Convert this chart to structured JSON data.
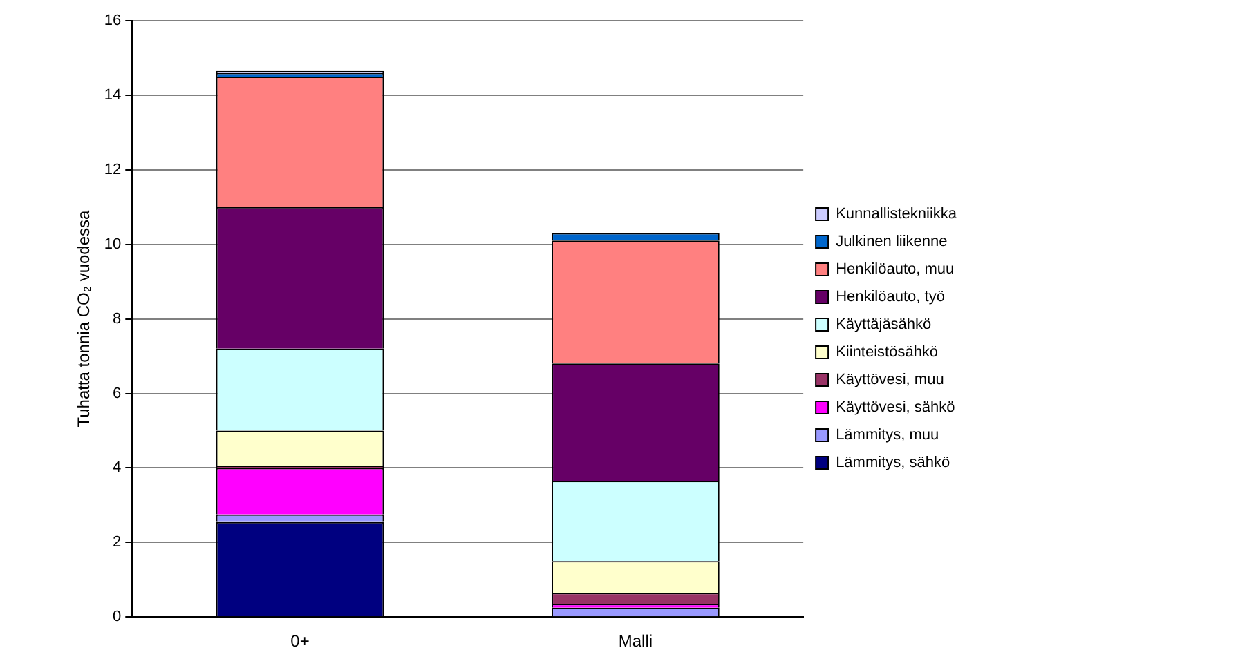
{
  "chart_data": {
    "type": "bar",
    "stacked": true,
    "ylabel": "Tuhatta tonnia CO₂ vuodessa",
    "categories": [
      "0+",
      "Malli"
    ],
    "ylim": [
      0,
      16
    ],
    "yticks": [
      0,
      2,
      4,
      6,
      8,
      10,
      12,
      14,
      16
    ],
    "grid": "y",
    "legend": "right",
    "series": [
      {
        "name": "Lämmitys, sähkö",
        "color": "#000080",
        "values": [
          2.55,
          0
        ]
      },
      {
        "name": "Lämmitys, muu",
        "color": "#9999ff",
        "values": [
          0.2,
          0.25
        ]
      },
      {
        "name": "Käyttövesi, sähkö",
        "color": "#ff00ff",
        "values": [
          1.25,
          0.1
        ]
      },
      {
        "name": "Käyttövesi, muu",
        "color": "#993366",
        "values": [
          0.05,
          0.3
        ]
      },
      {
        "name": "Kiinteistösähkö",
        "color": "#ffffcc",
        "values": [
          0.95,
          0.85
        ]
      },
      {
        "name": "Käyttäjäsähkö",
        "color": "#ccffff",
        "values": [
          2.2,
          2.15
        ]
      },
      {
        "name": "Henkilöauto, työ",
        "color": "#660066",
        "values": [
          3.8,
          3.15
        ]
      },
      {
        "name": "Henkilöauto, muu",
        "color": "#ff8080",
        "values": [
          3.5,
          3.3
        ]
      },
      {
        "name": "Julkinen liikenne",
        "color": "#0066cc",
        "values": [
          0.1,
          0.2
        ]
      },
      {
        "name": "Kunnallistekniikka",
        "color": "#ccccff",
        "values": [
          0.05,
          0
        ]
      }
    ]
  }
}
